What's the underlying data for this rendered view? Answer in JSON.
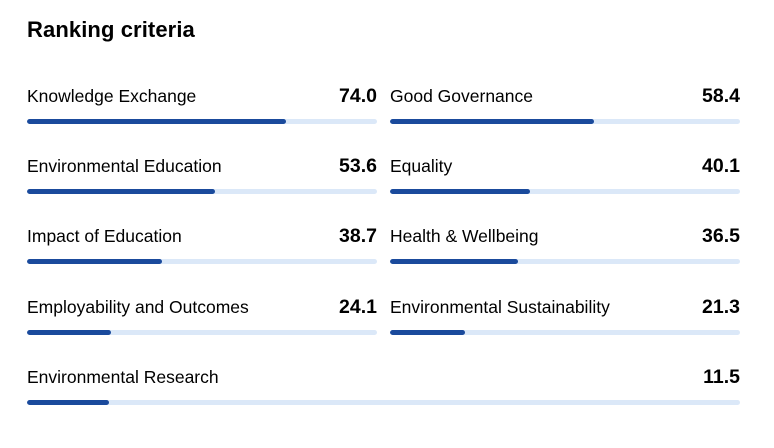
{
  "title": "Ranking criteria",
  "colors": {
    "bar_fill": "#1a4a9c",
    "bar_track": "#dbe8f8"
  },
  "criteria": [
    {
      "label": "Knowledge Exchange",
      "value": "74.0",
      "score": 74.0
    },
    {
      "label": "Good Governance",
      "value": "58.4",
      "score": 58.4
    },
    {
      "label": "Environmental Education",
      "value": "53.6",
      "score": 53.6
    },
    {
      "label": "Equality",
      "value": "40.1",
      "score": 40.1
    },
    {
      "label": "Impact of Education",
      "value": "38.7",
      "score": 38.7
    },
    {
      "label": "Health & Wellbeing",
      "value": "36.5",
      "score": 36.5
    },
    {
      "label": "Employability and Outcomes",
      "value": "24.1",
      "score": 24.1
    },
    {
      "label": "Environmental Sustainability",
      "value": "21.3",
      "score": 21.3
    },
    {
      "label": "Environmental Research",
      "value": "11.5",
      "score": 11.5
    }
  ]
}
